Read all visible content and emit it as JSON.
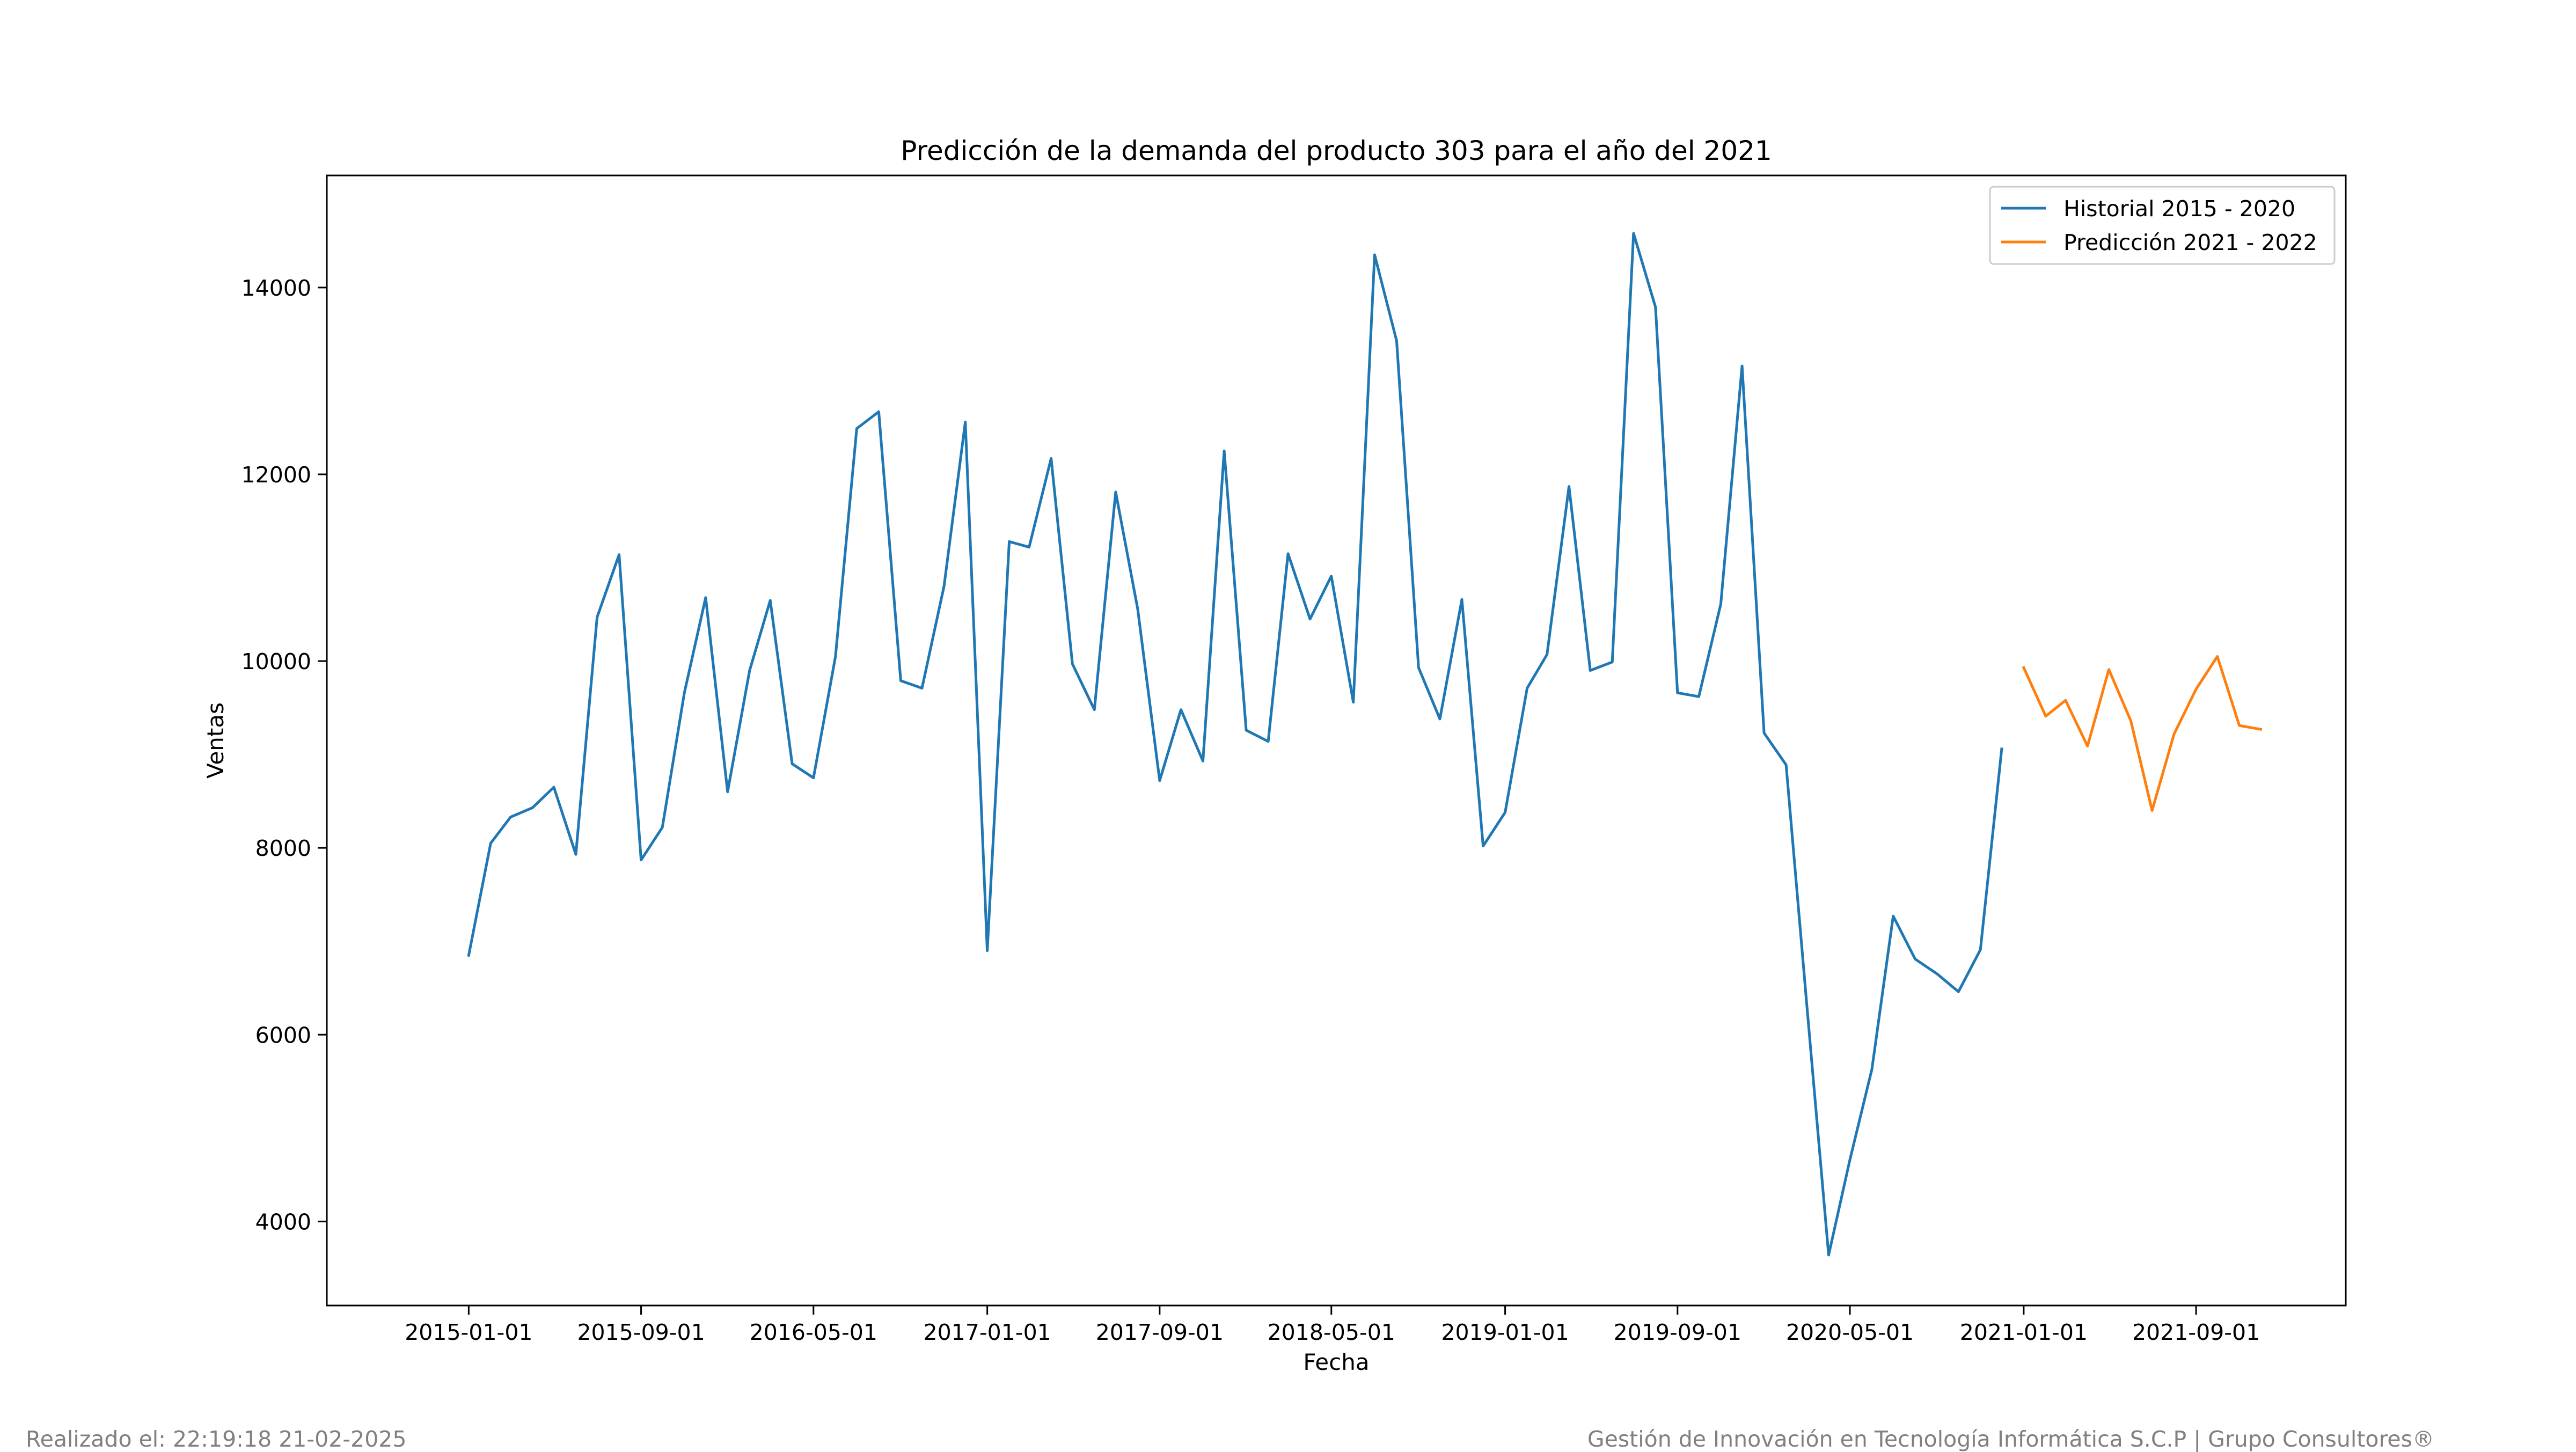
{
  "chart_data": {
    "type": "line",
    "title": "Predicción de la demanda del producto 303 para el año del 2021",
    "xlabel": "Fecha",
    "ylabel": "Ventas",
    "xlim": [
      "2014-06-15",
      "2022-03-31"
    ],
    "ylim": [
      3100,
      15200
    ],
    "x_ticks": [
      "2015-01-01",
      "2015-09-01",
      "2016-05-01",
      "2017-01-01",
      "2017-09-01",
      "2018-05-01",
      "2019-01-01",
      "2019-09-01",
      "2020-05-01",
      "2021-01-01",
      "2021-09-01"
    ],
    "y_ticks": [
      4000,
      6000,
      8000,
      10000,
      12000,
      14000
    ],
    "grid": false,
    "legend_position": "top-right",
    "series": [
      {
        "name": "Historial 2015 - 2020",
        "color": "#1f77b4",
        "start": "2015-01-01",
        "frequency": "monthly",
        "values": [
          6850,
          8050,
          8330,
          8430,
          8650,
          7930,
          10470,
          11140,
          7870,
          8220,
          9660,
          10680,
          8600,
          9900,
          10650,
          8900,
          8750,
          10050,
          12490,
          12670,
          9790,
          9710,
          10800,
          12560,
          6900,
          11280,
          11220,
          12170,
          9970,
          9480,
          11810,
          10560,
          8720,
          9480,
          8930,
          12250,
          9260,
          9140,
          11150,
          10450,
          10910,
          9560,
          14350,
          13430,
          9930,
          9380,
          10660,
          8020,
          8380,
          9710,
          10070,
          11870,
          9900,
          9990,
          14580,
          13790,
          9660,
          9620,
          10610,
          13160,
          9230,
          8890,
          6340,
          3640,
          4660,
          5630,
          7270,
          6810,
          6650,
          6460,
          6910,
          9060
        ]
      },
      {
        "name": "Predicción 2021 - 2022",
        "color": "#ff7f0e",
        "start": "2021-01-01",
        "frequency": "monthly",
        "values": [
          9930,
          9410,
          9580,
          9090,
          9910,
          9360,
          8400,
          9220,
          9700,
          10050,
          9310,
          9270
        ]
      }
    ]
  },
  "footer": {
    "left": "Realizado el: 22:19:18 21-02-2025",
    "right": "Gestión de Innovación en Tecnología Informática S.C.P | Grupo Consultores®"
  }
}
